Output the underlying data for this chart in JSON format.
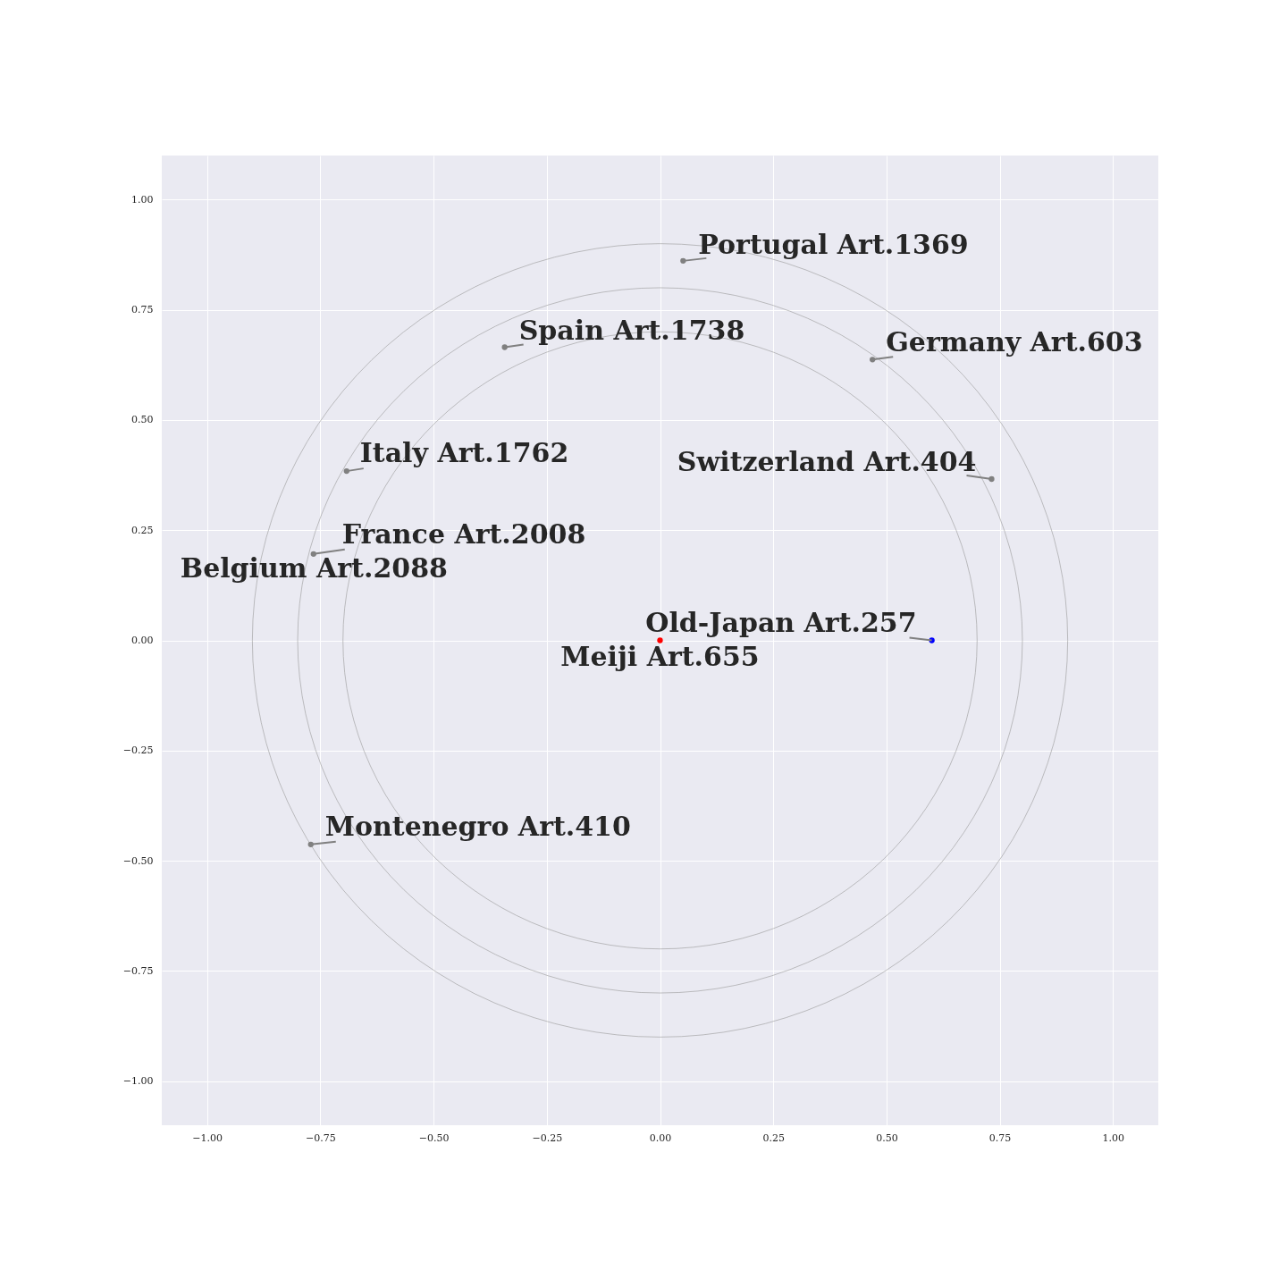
{
  "chart_data": {
    "type": "scatter",
    "xlim": [
      -1.1,
      1.1
    ],
    "ylim": [
      -1.1,
      1.1
    ],
    "xticks": [
      {
        "value": -1,
        "label": "−1.00"
      },
      {
        "value": -0.75,
        "label": "−0.75"
      },
      {
        "value": -0.5,
        "label": "−0.50"
      },
      {
        "value": -0.25,
        "label": "−0.25"
      },
      {
        "value": 0,
        "label": "0.00"
      },
      {
        "value": 0.25,
        "label": "0.25"
      },
      {
        "value": 0.5,
        "label": "0.50"
      },
      {
        "value": 0.75,
        "label": "0.75"
      },
      {
        "value": 1,
        "label": "1.00"
      }
    ],
    "yticks": [
      {
        "value": -1,
        "label": "−1.00"
      },
      {
        "value": -0.75,
        "label": "−0.75"
      },
      {
        "value": -0.5,
        "label": "−0.50"
      },
      {
        "value": -0.25,
        "label": "−0.25"
      },
      {
        "value": 0,
        "label": "0.00"
      },
      {
        "value": 0.25,
        "label": "0.25"
      },
      {
        "value": 0.5,
        "label": "0.50"
      },
      {
        "value": 0.75,
        "label": "0.75"
      },
      {
        "value": 1,
        "label": "1.00"
      }
    ],
    "grid": true,
    "marker": "circle",
    "series": [
      {
        "color": "#808080",
        "x": [
          0.051,
          -0.343,
          0.469,
          0.732,
          -0.692,
          -0.765,
          -0.771
        ],
        "values": [
          0.861,
          0.665,
          0.637,
          0.366,
          0.384,
          0.196,
          -0.463
        ]
      },
      {
        "color": "#0000ff",
        "x": [
          0.6
        ],
        "values": [
          0
        ]
      },
      {
        "color": "#ff0000",
        "x": [
          0
        ],
        "values": [
          0
        ]
      }
    ],
    "annotations": [
      {
        "text": "Portugal Art.1369",
        "x": 0.051,
        "y": 0.861
      },
      {
        "text": "Spain Art.1738",
        "x": -0.343,
        "y": 0.665
      },
      {
        "text": "Germany Art.603",
        "x": 0.469,
        "y": 0.637
      },
      {
        "text": "Switzerland Art.404",
        "x": 0.732,
        "y": 0.366
      },
      {
        "text": "Italy Art.1762",
        "x": -0.692,
        "y": 0.384
      },
      {
        "text": "France Art.2008",
        "x": -0.765,
        "y": 0.196
      },
      {
        "text": "Belgium Art.2088",
        "x": -0.765,
        "y": 0.196
      },
      {
        "text": "Montenegro Art.410",
        "x": -0.771,
        "y": -0.463
      },
      {
        "text": "Old-Japan Art.257",
        "x": 0.6,
        "y": 0
      },
      {
        "text": "Meiji Art.655",
        "x": 0,
        "y": 0
      }
    ]
  }
}
